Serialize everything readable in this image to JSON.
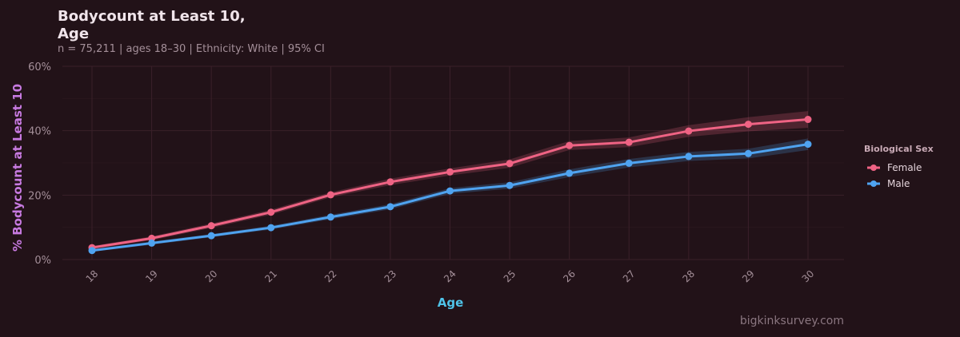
{
  "header": {
    "title_line1": "Bodycount at Least 10,",
    "title_line2": "Age",
    "subtitle": "n = 75,211  |  ages 18–30  |  Ethnicity: White  |  95% CI"
  },
  "caption": "bigkinksurvey.com",
  "colors": {
    "background": "#221218",
    "grid": "#3a2029",
    "female": "#ef6384",
    "male": "#4fa3f0"
  },
  "chart_data": {
    "type": "line",
    "xlabel": "Age",
    "ylabel": "% Bodycount at Least 10",
    "x": [
      18,
      19,
      20,
      21,
      22,
      23,
      24,
      25,
      26,
      27,
      28,
      29,
      30
    ],
    "ylim": [
      0,
      60
    ],
    "yticks": [
      "0%",
      "20%",
      "40%",
      "60%"
    ],
    "ytick_values": [
      0,
      20,
      40,
      60
    ],
    "grid": true,
    "legend": {
      "title": "Biological Sex",
      "placement": "right"
    },
    "series": [
      {
        "name": "Female",
        "color": "#ef6384",
        "values": [
          3.7,
          6.6,
          10.5,
          14.7,
          20.1,
          24.1,
          27.2,
          29.8,
          35.4,
          36.4,
          39.9,
          42.0,
          43.5
        ],
        "ci_low": [
          3.2,
          6.0,
          9.8,
          13.9,
          19.3,
          23.1,
          26.1,
          28.5,
          34.0,
          34.9,
          38.1,
          39.8,
          40.9
        ],
        "ci_high": [
          4.2,
          7.2,
          11.2,
          15.5,
          20.9,
          25.1,
          28.3,
          31.1,
          36.8,
          37.9,
          41.7,
          44.2,
          46.1
        ]
      },
      {
        "name": "Male",
        "color": "#4fa3f0",
        "values": [
          2.8,
          5.1,
          7.4,
          9.9,
          13.2,
          16.4,
          21.3,
          23.0,
          26.8,
          29.9,
          32.0,
          32.9,
          35.8
        ],
        "ci_low": [
          2.4,
          4.6,
          6.9,
          9.3,
          12.5,
          15.6,
          20.4,
          22.0,
          25.6,
          28.6,
          30.6,
          31.4,
          34.0
        ],
        "ci_high": [
          3.2,
          5.6,
          7.9,
          10.5,
          13.9,
          17.2,
          22.2,
          24.0,
          28.0,
          31.2,
          33.4,
          34.4,
          37.6
        ]
      }
    ]
  }
}
